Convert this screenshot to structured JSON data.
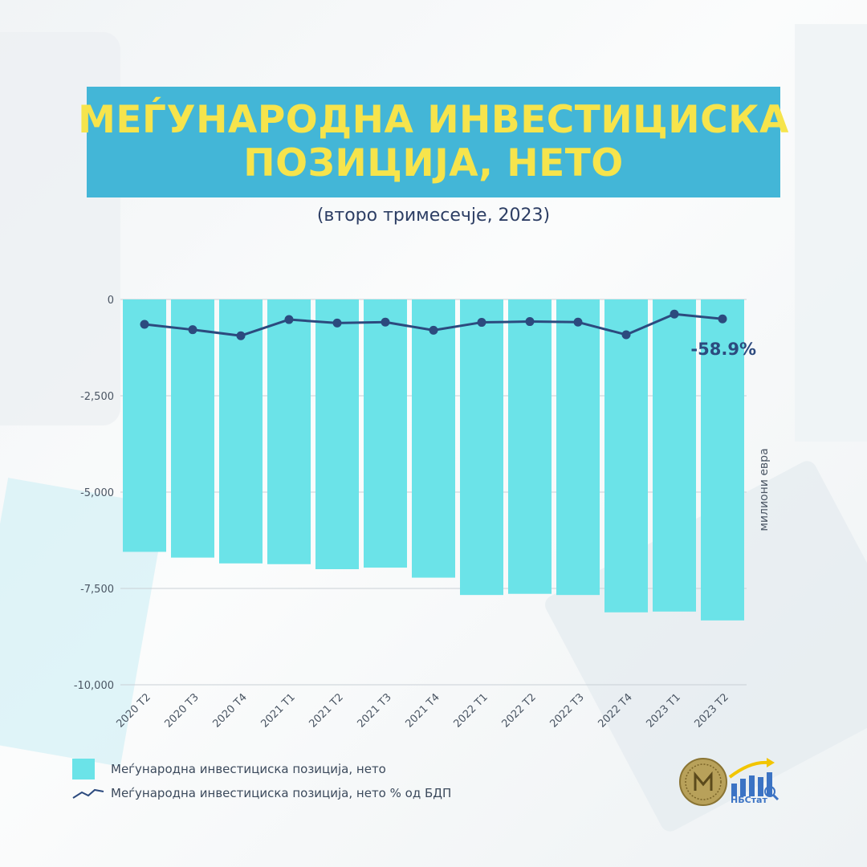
{
  "title": {
    "line1": "МЕЃУНАРОДНА ИНВЕСТИЦИСКА",
    "line2": "ПОЗИЦИЈА, НЕТО"
  },
  "subtitle": "(второ тримесечје, 2023)",
  "legend": {
    "bars": "Меѓународна инвестициска позиција, нето",
    "line": "Меѓународна инвестициска позиција, нето % од БДП"
  },
  "logo_text": "НБСтат",
  "colors": {
    "title_bg": "#43b6d7",
    "title_text": "#f6e44c",
    "bar": "#6be3e8",
    "line": "#2c4a7e",
    "text": "#2d3e64"
  },
  "chart_data": {
    "type": "bar",
    "categories": [
      "2020 T2",
      "2020 T3",
      "2020 T4",
      "2021 T1",
      "2021 T2",
      "2021 T3",
      "2021 T4",
      "2022 T1",
      "2022 T2",
      "2022 T3",
      "2022 T4",
      "2023 T1",
      "2023 T2"
    ],
    "series": [
      {
        "type": "bar",
        "values": [
          -6550,
          -6700,
          -6850,
          -6870,
          -7000,
          -6960,
          -7220,
          -7670,
          -7640,
          -7670,
          -8120,
          -8100,
          -8330
        ]
      },
      {
        "type": "line",
        "values": [
          -64.5,
          -78.5,
          -94.2,
          -52.2,
          -61.2,
          -58.9,
          -80.0,
          -59.5,
          -57.4,
          -58.9,
          -91.6,
          -38.1,
          -50.5
        ]
      }
    ],
    "yticks": [
      0,
      -2500,
      -5000,
      -7500,
      -10000
    ],
    "ytick_labels": [
      "0",
      "-2,500",
      "-5,000",
      "-7,500",
      "-10,000"
    ],
    "ylim": [
      -10000,
      0
    ],
    "ylabel": "милиони евра",
    "annotation": "-58.9%",
    "grid": true
  }
}
